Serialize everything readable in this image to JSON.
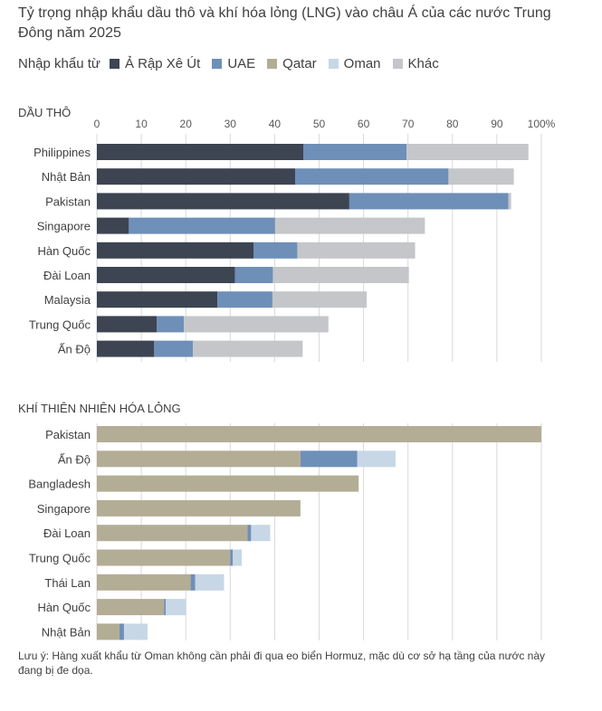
{
  "title": "Tỷ trọng nhập khẩu dầu thô và khí hóa lỏng (LNG) vào châu Á của các nước Trung Đông năm 2025",
  "legend": {
    "lead": "Nhập khẩu từ",
    "items": [
      {
        "name": "Ả Rập Xê Út",
        "color": "#3d4452"
      },
      {
        "name": "UAE",
        "color": "#6e8fb8"
      },
      {
        "name": "Qatar",
        "color": "#b3ad96"
      },
      {
        "name": "Oman",
        "color": "#c7d7e6"
      },
      {
        "name": "Khác",
        "color": "#c4c6c9"
      }
    ]
  },
  "note": "Lưu ý: Hàng xuất khẩu từ Oman không cần phải đi qua eo biển Hormuz, mặc dù cơ sở hạ tầng của nước này đang bị đe dọa.",
  "chart_data": [
    {
      "type": "bar",
      "orientation": "horizontal",
      "stacked": true,
      "title": "DẦU THÔ",
      "xlim": [
        0,
        100
      ],
      "ticks": [
        "0",
        "10",
        "20",
        "30",
        "40",
        "50",
        "60",
        "70",
        "80",
        "90",
        "100%"
      ],
      "tick_values": [
        0,
        10,
        20,
        30,
        40,
        50,
        60,
        70,
        80,
        90,
        100
      ],
      "categories": [
        "Philippines",
        "Nhật Bản",
        "Pakistan",
        "Singapore",
        "Hàn Quốc",
        "Đài Loan",
        "Malaysia",
        "Trung Quốc",
        "Ấn Độ"
      ],
      "series": [
        {
          "name": "Ả Rập Xê Út",
          "color": "#3d4452",
          "values": [
            46.5,
            44.6,
            56.8,
            7.2,
            35.3,
            31.1,
            27.1,
            13.5,
            12.9
          ]
        },
        {
          "name": "UAE",
          "color": "#6e8fb8",
          "values": [
            23.2,
            34.5,
            35.8,
            32.9,
            9.8,
            8.5,
            12.4,
            6.1,
            8.7
          ]
        },
        {
          "name": "Khác",
          "color": "#c4c6c9",
          "values": [
            27.4,
            14.7,
            0.6,
            33.7,
            26.5,
            30.6,
            21.2,
            32.5,
            24.7
          ]
        }
      ]
    },
    {
      "type": "bar",
      "orientation": "horizontal",
      "stacked": true,
      "title": "KHÍ THIÊN NHIÊN HÓA LỎNG",
      "xlim": [
        0,
        100
      ],
      "categories": [
        "Pakistan",
        "Ấn Độ",
        "Bangladesh",
        "Singapore",
        "Đài Loan",
        "Trung Quốc",
        "Thái Lan",
        "Hàn Quốc",
        "Nhật Bản"
      ],
      "series": [
        {
          "name": "Qatar",
          "color": "#b3ad96",
          "values": [
            100,
            45.8,
            58.9,
            45.8,
            33.9,
            30.0,
            21.1,
            15.1,
            5.1
          ]
        },
        {
          "name": "UAE",
          "color": "#6e8fb8",
          "values": [
            0,
            12.8,
            0,
            0,
            0.8,
            0.6,
            1.0,
            0.4,
            1.0
          ]
        },
        {
          "name": "Oman",
          "color": "#c7d7e6",
          "values": [
            0,
            8.6,
            0,
            0,
            4.3,
            2.0,
            6.5,
            4.6,
            5.3
          ]
        }
      ]
    }
  ]
}
